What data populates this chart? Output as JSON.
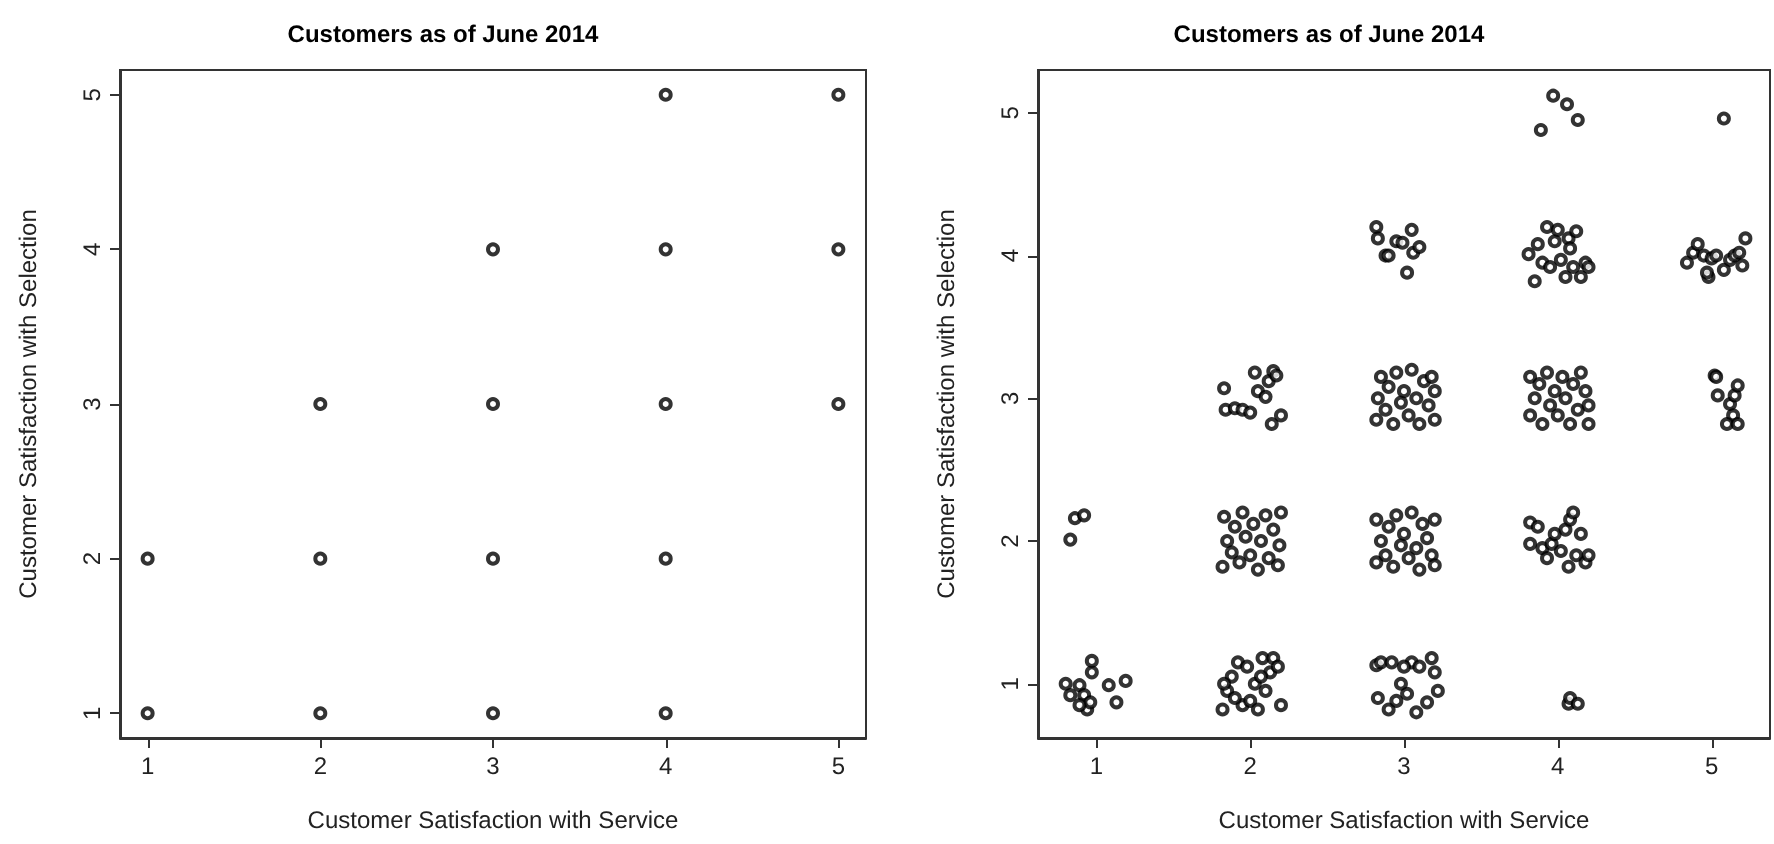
{
  "chart_data": [
    {
      "type": "scatter",
      "title": "Customers as of June 2014",
      "xlabel": "Customer Satisfaction with Service",
      "ylabel": "Customer Satisfaction with Selection",
      "xlim": [
        0.84,
        5.16
      ],
      "ylim": [
        0.84,
        5.16
      ],
      "xticks": [
        1,
        2,
        3,
        4,
        5
      ],
      "yticks": [
        1,
        2,
        3,
        4,
        5
      ],
      "grid": false,
      "marker": "circle",
      "series": [
        {
          "color": "#000000",
          "x": [
            1,
            1,
            2,
            2,
            2,
            3,
            3,
            3,
            3,
            4,
            4,
            4,
            4,
            4,
            5,
            5,
            5
          ],
          "values": [
            1,
            2,
            1,
            2,
            3,
            1,
            2,
            3,
            4,
            1,
            2,
            3,
            4,
            5,
            3,
            4,
            5
          ]
        }
      ]
    },
    {
      "type": "scatter",
      "title": "Customers as of June 2014",
      "xlabel": "Customer Satisfaction with Service",
      "ylabel": "Customer Satisfaction with Selection",
      "xlim": [
        0.62,
        5.38
      ],
      "ylim": [
        0.62,
        5.3
      ],
      "xticks": [
        1,
        2,
        3,
        4,
        5
      ],
      "yticks": [
        1,
        2,
        3,
        4,
        5
      ],
      "grid": false,
      "marker": "circle",
      "series": [
        {
          "color": "#000000",
          "x": [
            0.8,
            0.83,
            0.89,
            0.92,
            0.94,
            0.96,
            0.97,
            0.97,
            1.08,
            1.13,
            1.19,
            0.89,
            0.83,
            0.86,
            0.92,
            1.82,
            1.85,
            1.88,
            1.92,
            1.95,
            1.98,
            2.0,
            2.03,
            2.05,
            2.08,
            2.1,
            2.13,
            2.15,
            2.18,
            2.2,
            1.9,
            2.07,
            1.83,
            1.82,
            1.85,
            1.83,
            1.88,
            1.9,
            1.93,
            1.95,
            1.97,
            2.0,
            2.02,
            2.05,
            2.07,
            2.1,
            2.12,
            2.15,
            2.18,
            2.2,
            2.19,
            1.83,
            1.84,
            1.9,
            1.95,
            2.0,
            2.03,
            2.05,
            2.1,
            2.12,
            2.15,
            2.17,
            2.14,
            2.2,
            2.82,
            2.85,
            2.83,
            2.9,
            2.95,
            2.98,
            3.02,
            3.05,
            3.08,
            3.1,
            3.15,
            3.18,
            3.2,
            3.22,
            2.92,
            3.0,
            2.82,
            2.82,
            2.85,
            2.88,
            2.9,
            2.93,
            2.95,
            2.98,
            3.0,
            3.03,
            3.05,
            3.08,
            3.1,
            3.12,
            3.15,
            3.18,
            3.2,
            3.2,
            2.82,
            2.83,
            2.85,
            2.88,
            2.9,
            2.93,
            2.95,
            2.98,
            3.0,
            3.03,
            3.05,
            3.08,
            3.1,
            3.13,
            3.16,
            3.18,
            3.2,
            3.2,
            2.82,
            2.83,
            2.88,
            2.9,
            2.95,
            2.99,
            3.02,
            3.05,
            3.06,
            3.1,
            4.07,
            4.08,
            4.13,
            3.82,
            3.82,
            3.87,
            3.9,
            3.93,
            3.96,
            3.98,
            4.02,
            4.05,
            4.07,
            4.08,
            4.1,
            4.12,
            4.15,
            4.18,
            4.2,
            3.82,
            3.82,
            3.85,
            3.88,
            3.9,
            3.93,
            3.95,
            3.98,
            4.0,
            4.03,
            4.05,
            4.08,
            4.1,
            4.13,
            4.15,
            4.18,
            4.2,
            4.2,
            3.81,
            3.85,
            3.87,
            3.9,
            3.93,
            3.95,
            3.98,
            4.0,
            4.02,
            4.05,
            4.07,
            4.1,
            4.12,
            4.15,
            4.18,
            4.2,
            4.08,
            3.89,
            3.97,
            4.06,
            4.13,
            5.02,
            5.03,
            5.04,
            5.12,
            5.15,
            5.17,
            5.14,
            5.1,
            5.17,
            4.84,
            4.88,
            4.91,
            4.95,
            4.98,
            5.0,
            5.03,
            5.08,
            5.12,
            5.15,
            5.18,
            5.2,
            5.22,
            4.97,
            5.08
          ],
          "values": [
            1.0,
            0.92,
            0.99,
            0.92,
            0.82,
            0.87,
            1.08,
            1.16,
            0.99,
            0.87,
            1.02,
            0.85,
            2.01,
            2.16,
            2.18,
            0.82,
            0.95,
            1.05,
            1.15,
            0.85,
            1.12,
            0.88,
            1.0,
            0.82,
            1.18,
            0.95,
            1.08,
            1.18,
            1.12,
            0.85,
            0.9,
            1.05,
            1.0,
            1.82,
            2.0,
            2.17,
            1.92,
            2.1,
            1.85,
            2.2,
            2.03,
            1.9,
            2.12,
            1.8,
            2.0,
            2.18,
            1.88,
            2.08,
            1.83,
            2.2,
            1.97,
            3.07,
            2.92,
            2.93,
            2.92,
            2.9,
            3.18,
            3.05,
            3.01,
            3.12,
            3.19,
            3.16,
            2.82,
            2.88,
            1.13,
            1.15,
            0.9,
            0.82,
            0.88,
            1.0,
            0.93,
            1.15,
            0.8,
            1.12,
            0.87,
            1.18,
            1.08,
            0.95,
            1.15,
            1.12,
            1.85,
            2.15,
            2.0,
            1.9,
            2.1,
            1.82,
            2.18,
            1.97,
            2.05,
            1.88,
            2.2,
            1.95,
            1.8,
            2.12,
            2.02,
            1.9,
            2.15,
            1.83,
            2.85,
            3.0,
            3.15,
            2.92,
            3.08,
            2.82,
            3.18,
            2.97,
            3.05,
            2.88,
            3.2,
            3.0,
            2.82,
            3.12,
            2.95,
            3.15,
            3.05,
            2.85,
            4.2,
            4.12,
            4.0,
            4.0,
            4.1,
            4.09,
            3.88,
            4.18,
            4.02,
            4.06,
            0.86,
            0.9,
            0.86,
            2.13,
            1.98,
            2.1,
            1.95,
            1.88,
            1.98,
            2.05,
            1.93,
            2.08,
            1.82,
            2.15,
            2.2,
            1.9,
            2.05,
            1.85,
            1.9,
            3.15,
            2.88,
            3.0,
            3.1,
            2.82,
            3.18,
            2.95,
            3.05,
            2.88,
            3.15,
            3.0,
            2.82,
            3.1,
            2.92,
            3.18,
            3.05,
            2.82,
            2.95,
            4.01,
            3.82,
            4.08,
            3.95,
            4.2,
            3.92,
            4.1,
            4.18,
            3.97,
            3.85,
            4.12,
            3.92,
            4.17,
            3.85,
            3.95,
            3.92,
            4.05,
            4.88,
            5.12,
            5.06,
            4.95,
            3.16,
            3.15,
            3.02,
            2.96,
            3.02,
            3.09,
            2.88,
            2.82,
            2.82,
            3.95,
            4.02,
            4.08,
            4.0,
            3.85,
            3.98,
            4.0,
            3.9,
            3.97,
            4.0,
            4.02,
            3.93,
            4.12,
            3.88,
            4.96
          ]
        }
      ]
    }
  ]
}
